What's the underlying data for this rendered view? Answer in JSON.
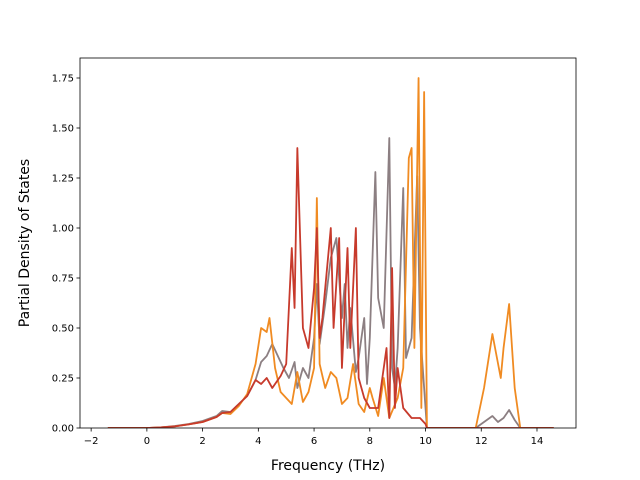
{
  "chart_data": {
    "type": "line",
    "title": "",
    "xlabel": "Frequency (THz)",
    "ylabel": "Partial Density of States",
    "xlim": [
      -2.4,
      15.4
    ],
    "ylim": [
      0,
      1.85
    ],
    "grid": false,
    "legend": "none",
    "x_ticks": [
      -2,
      0,
      2,
      4,
      6,
      8,
      10,
      12,
      14
    ],
    "x_tick_labels": [
      "−2",
      "0",
      "2",
      "4",
      "6",
      "8",
      "10",
      "12",
      "14"
    ],
    "y_ticks": [
      0,
      0.25,
      0.5,
      0.75,
      1.0,
      1.25,
      1.5,
      1.75
    ],
    "y_tick_labels": [
      "0.00",
      "0.25",
      "0.50",
      "0.75",
      "1.00",
      "1.25",
      "1.50",
      "1.75"
    ],
    "series": [
      {
        "color": "#8c7f82",
        "points": [
          [
            -1.4,
            0
          ],
          [
            0,
            0
          ],
          [
            0.5,
            0.003
          ],
          [
            1,
            0.01
          ],
          [
            1.5,
            0.02
          ],
          [
            2,
            0.035
          ],
          [
            2.5,
            0.06
          ],
          [
            2.7,
            0.085
          ],
          [
            3,
            0.08
          ],
          [
            3.3,
            0.12
          ],
          [
            3.6,
            0.16
          ],
          [
            3.9,
            0.24
          ],
          [
            4.1,
            0.33
          ],
          [
            4.3,
            0.36
          ],
          [
            4.5,
            0.42
          ],
          [
            4.7,
            0.36
          ],
          [
            4.9,
            0.3
          ],
          [
            5.1,
            0.25
          ],
          [
            5.3,
            0.33
          ],
          [
            5.4,
            0.2
          ],
          [
            5.6,
            0.3
          ],
          [
            5.8,
            0.25
          ],
          [
            6.0,
            0.45
          ],
          [
            6.1,
            0.72
          ],
          [
            6.2,
            0.42
          ],
          [
            6.4,
            0.62
          ],
          [
            6.6,
            0.85
          ],
          [
            6.8,
            0.95
          ],
          [
            7.0,
            0.55
          ],
          [
            7.1,
            0.72
          ],
          [
            7.2,
            0.4
          ],
          [
            7.3,
            0.6
          ],
          [
            7.5,
            0.28
          ],
          [
            7.6,
            0.35
          ],
          [
            7.8,
            0.55
          ],
          [
            7.9,
            0.22
          ],
          [
            8.0,
            0.45
          ],
          [
            8.2,
            1.28
          ],
          [
            8.3,
            0.65
          ],
          [
            8.5,
            0.5
          ],
          [
            8.7,
            1.45
          ],
          [
            8.8,
            0.3
          ],
          [
            8.9,
            0.2
          ],
          [
            9.0,
            0.4
          ],
          [
            9.2,
            1.2
          ],
          [
            9.3,
            0.35
          ],
          [
            9.5,
            0.45
          ],
          [
            9.7,
            1.26
          ],
          [
            9.8,
            0.5
          ],
          [
            10.0,
            0.1
          ],
          [
            10.05,
            0
          ],
          [
            11.8,
            0
          ],
          [
            12.1,
            0.03
          ],
          [
            12.4,
            0.06
          ],
          [
            12.6,
            0.03
          ],
          [
            12.8,
            0.05
          ],
          [
            13.0,
            0.09
          ],
          [
            13.2,
            0.04
          ],
          [
            13.4,
            0
          ],
          [
            14.6,
            0
          ]
        ]
      },
      {
        "color": "#f08b22",
        "points": [
          [
            -1.4,
            0
          ],
          [
            0,
            0
          ],
          [
            0.5,
            0.003
          ],
          [
            1,
            0.008
          ],
          [
            1.5,
            0.018
          ],
          [
            2,
            0.03
          ],
          [
            2.5,
            0.055
          ],
          [
            2.7,
            0.075
          ],
          [
            3,
            0.07
          ],
          [
            3.3,
            0.11
          ],
          [
            3.6,
            0.17
          ],
          [
            3.9,
            0.32
          ],
          [
            4.1,
            0.5
          ],
          [
            4.3,
            0.48
          ],
          [
            4.4,
            0.55
          ],
          [
            4.6,
            0.3
          ],
          [
            4.8,
            0.18
          ],
          [
            5.0,
            0.15
          ],
          [
            5.2,
            0.12
          ],
          [
            5.4,
            0.28
          ],
          [
            5.6,
            0.13
          ],
          [
            5.8,
            0.18
          ],
          [
            6.0,
            0.3
          ],
          [
            6.1,
            1.15
          ],
          [
            6.2,
            0.32
          ],
          [
            6.4,
            0.2
          ],
          [
            6.6,
            0.28
          ],
          [
            6.8,
            0.25
          ],
          [
            7.0,
            0.12
          ],
          [
            7.2,
            0.15
          ],
          [
            7.4,
            0.32
          ],
          [
            7.6,
            0.12
          ],
          [
            7.8,
            0.08
          ],
          [
            8.0,
            0.2
          ],
          [
            8.1,
            0.15
          ],
          [
            8.3,
            0.06
          ],
          [
            8.5,
            0.25
          ],
          [
            8.7,
            0.05
          ],
          [
            9.0,
            0.15
          ],
          [
            9.2,
            0.3
          ],
          [
            9.4,
            1.35
          ],
          [
            9.5,
            1.4
          ],
          [
            9.6,
            0.4
          ],
          [
            9.75,
            1.75
          ],
          [
            9.85,
            0.1
          ],
          [
            9.95,
            1.68
          ],
          [
            10.05,
            0
          ],
          [
            11.8,
            0
          ],
          [
            12.1,
            0.2
          ],
          [
            12.4,
            0.47
          ],
          [
            12.7,
            0.25
          ],
          [
            12.8,
            0.4
          ],
          [
            13.0,
            0.62
          ],
          [
            13.2,
            0.2
          ],
          [
            13.4,
            0
          ],
          [
            14.6,
            0
          ]
        ]
      },
      {
        "color": "#c73a2c",
        "points": [
          [
            -1.4,
            0
          ],
          [
            0,
            0
          ],
          [
            0.5,
            0.003
          ],
          [
            1,
            0.008
          ],
          [
            1.5,
            0.018
          ],
          [
            2,
            0.03
          ],
          [
            2.5,
            0.055
          ],
          [
            2.7,
            0.075
          ],
          [
            3,
            0.08
          ],
          [
            3.3,
            0.12
          ],
          [
            3.6,
            0.16
          ],
          [
            3.9,
            0.24
          ],
          [
            4.1,
            0.22
          ],
          [
            4.3,
            0.25
          ],
          [
            4.5,
            0.2
          ],
          [
            4.8,
            0.26
          ],
          [
            5.0,
            0.32
          ],
          [
            5.2,
            0.9
          ],
          [
            5.3,
            0.6
          ],
          [
            5.4,
            1.4
          ],
          [
            5.5,
            0.95
          ],
          [
            5.6,
            0.5
          ],
          [
            5.8,
            0.4
          ],
          [
            6.0,
            0.7
          ],
          [
            6.1,
            1.0
          ],
          [
            6.2,
            0.45
          ],
          [
            6.3,
            0.55
          ],
          [
            6.5,
            0.85
          ],
          [
            6.6,
            1.0
          ],
          [
            6.7,
            0.5
          ],
          [
            6.9,
            0.95
          ],
          [
            7.0,
            0.3
          ],
          [
            7.2,
            0.9
          ],
          [
            7.3,
            0.4
          ],
          [
            7.5,
            1.0
          ],
          [
            7.6,
            0.25
          ],
          [
            7.8,
            0.15
          ],
          [
            8.0,
            0.1
          ],
          [
            8.3,
            0.1
          ],
          [
            8.6,
            0.4
          ],
          [
            8.7,
            0.05
          ],
          [
            8.8,
            0.8
          ],
          [
            8.9,
            0.1
          ],
          [
            9.0,
            0.3
          ],
          [
            9.2,
            0.1
          ],
          [
            9.5,
            0.05
          ],
          [
            9.8,
            0.05
          ],
          [
            10.0,
            0.02
          ],
          [
            10.05,
            0
          ],
          [
            14.6,
            0
          ]
        ]
      }
    ]
  }
}
